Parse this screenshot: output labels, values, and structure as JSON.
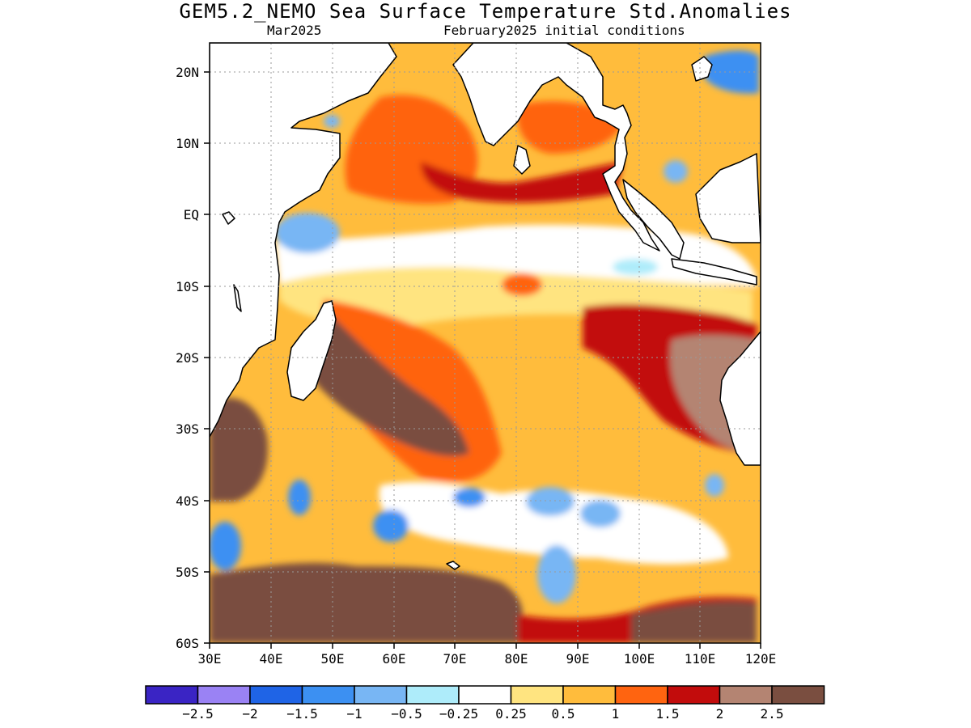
{
  "header": {
    "title": "GEM5.2_NEMO Sea Surface Temperature Std.Anomalies",
    "valid_month": "Mar2025",
    "init_conditions": "February2025 initial conditions"
  },
  "map": {
    "lon_range": [
      30,
      120
    ],
    "lat_range": [
      -60,
      24
    ],
    "lon_ticks": [
      "30E",
      "40E",
      "50E",
      "60E",
      "70E",
      "80E",
      "90E",
      "100E",
      "110E",
      "120E"
    ],
    "lat_ticks": [
      "20N",
      "10N",
      "EQ",
      "10S",
      "20S",
      "30S",
      "40S",
      "50S",
      "60S"
    ]
  },
  "legend": {
    "colors": [
      "#3a24c4",
      "#9a82f4",
      "#1f64e6",
      "#3c90f2",
      "#78b6f4",
      "#aeecfa",
      "#ffffff",
      "#ffe480",
      "#ffbc3c",
      "#ff6410",
      "#c20c0c",
      "#b48472",
      "#7a4e40"
    ],
    "labels": [
      "-2.5",
      "-2",
      "-1.5",
      "-1",
      "-0.5",
      "-0.25",
      "0.25",
      "0.5",
      "1",
      "1.5",
      "2",
      "2.5"
    ]
  }
}
